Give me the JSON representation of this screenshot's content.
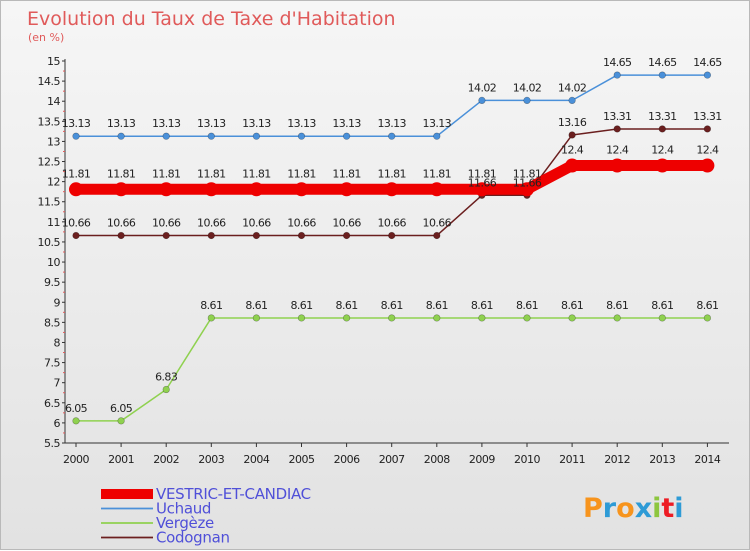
{
  "chart_data": {
    "type": "line",
    "title": "Evolution du Taux de Taxe d'Habitation",
    "subtitle": "(en %)",
    "x": [
      "2000",
      "2001",
      "2002",
      "2003",
      "2004",
      "2005",
      "2006",
      "2007",
      "2008",
      "2009",
      "2010",
      "2011",
      "2012",
      "2013",
      "2014"
    ],
    "ylim": [
      5.5,
      15
    ],
    "yticks": [
      "5.5",
      "6",
      "6.5",
      "7",
      "7.5",
      "8",
      "8.5",
      "9",
      "9.5",
      "10",
      "10.5",
      "11",
      "11.5",
      "12",
      "12.5",
      "13",
      "13.5",
      "14",
      "14.5",
      "15"
    ],
    "grid": false,
    "legend_position": "bottom-left",
    "series": [
      {
        "name": "VESTRIC-ET-CANDIAC",
        "color": "#ee0000",
        "values": [
          11.81,
          11.81,
          11.81,
          11.81,
          11.81,
          11.81,
          11.81,
          11.81,
          11.81,
          11.81,
          11.81,
          12.4,
          12.4,
          12.4,
          12.4
        ],
        "labels": [
          "11.81",
          "11.81",
          "11.81",
          "11.81",
          "11.81",
          "11.81",
          "11.81",
          "11.81",
          "11.81",
          "11.81",
          "11.81",
          "12.4",
          "12.4",
          "12.4",
          "12.4"
        ]
      },
      {
        "name": "Uchaud",
        "color": "#4a90d9",
        "values": [
          13.13,
          13.13,
          13.13,
          13.13,
          13.13,
          13.13,
          13.13,
          13.13,
          13.13,
          14.02,
          14.02,
          14.02,
          14.65,
          14.65,
          14.65
        ],
        "labels": [
          "13.13",
          "13.13",
          "13.13",
          "13.13",
          "13.13",
          "13.13",
          "13.13",
          "13.13",
          "13.13",
          "14.02",
          "14.02",
          "14.02",
          "14.65",
          "14.65",
          "14.65"
        ]
      },
      {
        "name": "Vergèze",
        "color": "#8fd14f",
        "values": [
          6.05,
          6.05,
          6.83,
          8.61,
          8.61,
          8.61,
          8.61,
          8.61,
          8.61,
          8.61,
          8.61,
          8.61,
          8.61,
          8.61,
          8.61
        ],
        "labels": [
          "6.05",
          "6.05",
          "6.83",
          "8.61",
          "8.61",
          "8.61",
          "8.61",
          "8.61",
          "8.61",
          "8.61",
          "8.61",
          "8.61",
          "8.61",
          "8.61",
          "8.61"
        ]
      },
      {
        "name": "Codognan",
        "color": "#6b1f1f",
        "values": [
          10.66,
          10.66,
          10.66,
          10.66,
          10.66,
          10.66,
          10.66,
          10.66,
          10.66,
          11.66,
          11.66,
          13.16,
          13.31,
          13.31,
          13.31
        ],
        "labels": [
          "10.66",
          "10.66",
          "10.66",
          "10.66",
          "10.66",
          "10.66",
          "10.66",
          "10.66",
          "10.66",
          "11.66",
          "11.66",
          "13.16",
          "13.31",
          "13.31",
          "13.31"
        ]
      }
    ]
  },
  "logo": {
    "text": "Proxiti",
    "colors": [
      "#f7941d",
      "#2e9bd6",
      "#f7941d",
      "#2e9bd6",
      "#8dc63f",
      "#ed1c24",
      "#2e9bd6"
    ]
  }
}
